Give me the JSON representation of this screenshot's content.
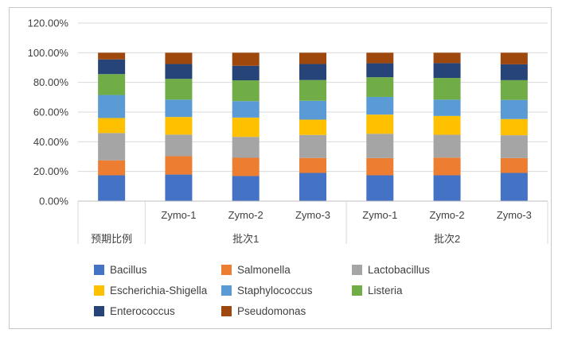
{
  "chart_data": {
    "type": "bar",
    "stacked": true,
    "title": "",
    "xlabel": "",
    "ylabel": "",
    "ylim": [
      0,
      120
    ],
    "yticks": [
      "0.00%",
      "20.00%",
      "40.00%",
      "60.00%",
      "80.00%",
      "100.00%",
      "120.00%"
    ],
    "grid": true,
    "legend_position": "bottom",
    "categories": [
      "",
      "Zymo-1",
      "Zymo-2",
      "Zymo-3",
      "Zymo-1",
      "Zymo-2",
      "Zymo-3"
    ],
    "groups": [
      {
        "label": "预期比例",
        "categories": [
          0
        ]
      },
      {
        "label": "批次1",
        "categories": [
          1,
          2,
          3
        ]
      },
      {
        "label": "批次2",
        "categories": [
          4,
          5,
          6
        ]
      }
    ],
    "series": [
      {
        "name": "Bacillus",
        "color": "#4472C4",
        "values": [
          17.4,
          17.9,
          16.9,
          19.0,
          17.4,
          17.4,
          19.0
        ]
      },
      {
        "name": "Salmonella",
        "color": "#ED7D31",
        "values": [
          10.1,
          12.4,
          12.3,
          10.1,
          11.6,
          11.9,
          10.0
        ]
      },
      {
        "name": "Lactobacillus",
        "color": "#A5A5A5",
        "values": [
          18.4,
          14.5,
          14.1,
          15.5,
          16.4,
          15.4,
          15.4
        ]
      },
      {
        "name": "Escherichia-Shigella",
        "color": "#FFC000",
        "values": [
          10.1,
          11.9,
          13.0,
          10.3,
          12.9,
          12.7,
          10.9
        ]
      },
      {
        "name": "Staphylococcus",
        "color": "#5B9BD5",
        "values": [
          15.5,
          11.7,
          11.1,
          12.7,
          11.9,
          11.0,
          12.9
        ]
      },
      {
        "name": "Listeria",
        "color": "#70AD47",
        "values": [
          14.1,
          14.0,
          14.0,
          14.0,
          13.3,
          14.6,
          13.3
        ]
      },
      {
        "name": "Enterococcus",
        "color": "#264478",
        "values": [
          9.9,
          10.0,
          9.8,
          10.8,
          9.4,
          10.0,
          10.7
        ]
      },
      {
        "name": "Pseudomonas",
        "color": "#9E480E",
        "values": [
          4.5,
          7.6,
          8.8,
          7.6,
          7.1,
          7.0,
          7.8
        ]
      }
    ]
  }
}
